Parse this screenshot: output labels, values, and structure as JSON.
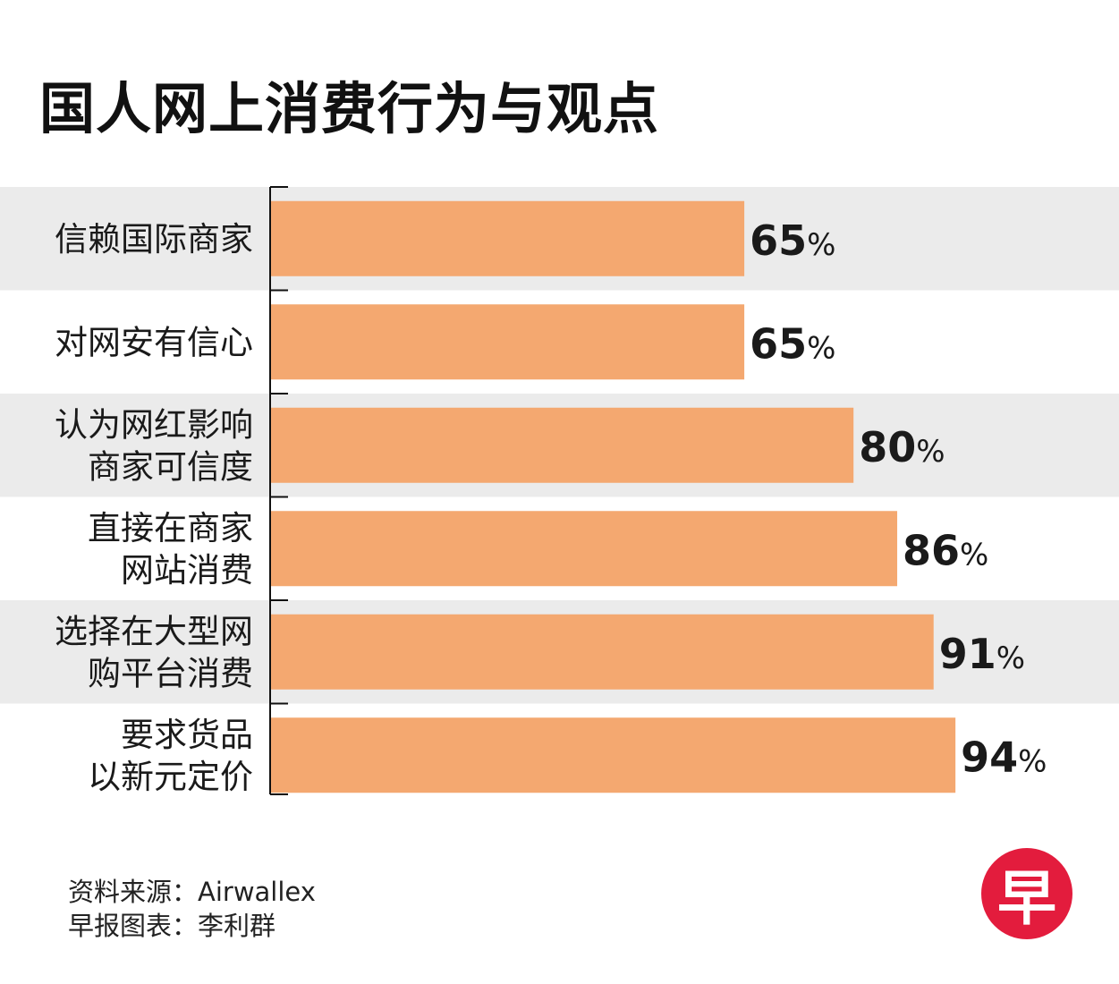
{
  "title": "国人网上消费行为与观点",
  "colors": {
    "bar": "#f4a870",
    "band": "#ebebeb",
    "axis": "#111111",
    "logo": "#e31c3d"
  },
  "chart_data": {
    "type": "bar",
    "orientation": "horizontal",
    "categories": [
      [
        "信赖国际商家"
      ],
      [
        "对网安有信心"
      ],
      [
        "认为网红影响",
        "商家可信度"
      ],
      [
        "直接在商家",
        "网站消费"
      ],
      [
        "选择在大型网",
        "购平台消费"
      ],
      [
        "要求货品",
        "以新元定价"
      ]
    ],
    "values": [
      65,
      65,
      80,
      86,
      91,
      94
    ],
    "unit": "%",
    "xlim": [
      0,
      100
    ],
    "grid": false
  },
  "footer": {
    "source": "资料来源：Airwallex",
    "credit": "早报图表：李利群"
  },
  "logo": {
    "char": "早"
  }
}
